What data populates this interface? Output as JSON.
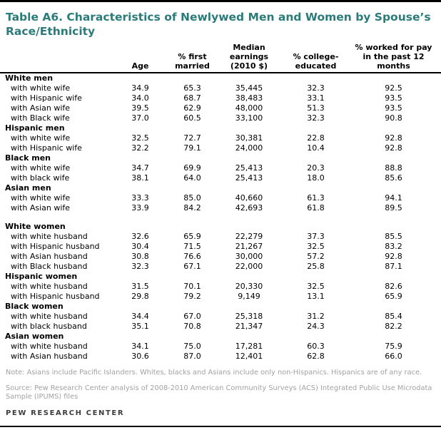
{
  "title": "Table A6. Characteristics of Newlywed Men and Women by Spouse’s Race/Ethnicity",
  "columns": [
    "Age",
    "% first\nmarried",
    "Median\nearnings\n(2010 $)",
    "% college-\neducated",
    "% worked for pay\nin the past 12\nmonths"
  ],
  "sections": [
    {
      "label": "White men",
      "gap_after": false,
      "rows": [
        {
          "label": "with white wife",
          "values": [
            "34.9",
            "65.3",
            "35,445",
            "32.3",
            "92.5"
          ]
        },
        {
          "label": "with Hispanic wife",
          "values": [
            "34.0",
            "68.7",
            "38,483",
            "33.1",
            "93.5"
          ]
        },
        {
          "label": "with Asian wife",
          "values": [
            "39.5",
            "62.9",
            "48,000",
            "51.3",
            "93.5"
          ]
        },
        {
          "label": "with Black wife",
          "values": [
            "37.0",
            "60.5",
            "33,100",
            "32.3",
            "90.8"
          ]
        }
      ]
    },
    {
      "label": "Hispanic men",
      "gap_after": false,
      "rows": [
        {
          "label": "with white wife",
          "values": [
            "32.5",
            "72.7",
            "30,381",
            "22.8",
            "92.8"
          ]
        },
        {
          "label": "with Hispanic wife",
          "values": [
            "32.2",
            "79.1",
            "24,000",
            "10.4",
            "92.8"
          ]
        }
      ]
    },
    {
      "label": "Black men",
      "gap_after": false,
      "rows": [
        {
          "label": "with white wife",
          "values": [
            "34.7",
            "69.9",
            "25,413",
            "20.3",
            "88.8"
          ]
        },
        {
          "label": "with black wife",
          "values": [
            "38.1",
            "64.0",
            "25,413",
            "18.0",
            "85.6"
          ]
        }
      ]
    },
    {
      "label": "Asian men",
      "gap_after": true,
      "rows": [
        {
          "label": "with white wife",
          "values": [
            "33.3",
            "85.0",
            "40,660",
            "61.3",
            "94.1"
          ]
        },
        {
          "label": "with Asian wife",
          "values": [
            "33.9",
            "84.2",
            "42,693",
            "61.8",
            "89.5"
          ]
        }
      ]
    },
    {
      "label": "White women",
      "gap_after": false,
      "rows": [
        {
          "label": "with white husband",
          "values": [
            "32.6",
            "65.9",
            "22,279",
            "37.3",
            "85.5"
          ]
        },
        {
          "label": "with Hispanic husband",
          "values": [
            "30.4",
            "71.5",
            "21,267",
            "32.5",
            "83.2"
          ]
        },
        {
          "label": "with Asian husband",
          "values": [
            "30.8",
            "76.6",
            "30,000",
            "57.2",
            "92.8"
          ]
        },
        {
          "label": "with Black husband",
          "values": [
            "32.3",
            "67.1",
            "22,000",
            "25.8",
            "87.1"
          ]
        }
      ]
    },
    {
      "label": "Hispanic women",
      "gap_after": false,
      "rows": [
        {
          "label": "with white husband",
          "values": [
            "31.5",
            "70.1",
            "20,330",
            "32.5",
            "82.6"
          ]
        },
        {
          "label": "with Hispanic husband",
          "values": [
            "29.8",
            "79.2",
            "9,149",
            "13.1",
            "65.9"
          ]
        }
      ]
    },
    {
      "label": "Black women",
      "gap_after": false,
      "rows": [
        {
          "label": "with white husband",
          "values": [
            "34.4",
            "67.0",
            "25,318",
            "31.2",
            "85.4"
          ]
        },
        {
          "label": "with black husband",
          "values": [
            "35.1",
            "70.8",
            "21,347",
            "24.3",
            "82.2"
          ]
        }
      ]
    },
    {
      "label": "Asian women",
      "gap_after": false,
      "rows": [
        {
          "label": "with white husband",
          "values": [
            "34.1",
            "75.0",
            "17,281",
            "60.3",
            "75.9"
          ]
        },
        {
          "label": "with Asian husband",
          "values": [
            "30.6",
            "87.0",
            "12,401",
            "62.8",
            "66.0"
          ]
        }
      ]
    }
  ],
  "note": "Note: Asians include Pacific Islanders. Whites, blacks and Asians include only non-Hispanics. Hispanics are of any race.",
  "source": "Source: Pew Research Center analysis of 2008-2010 American Community Surveys (ACS) Integrated Public Use Microdata Sample (IPUMS) files",
  "footer": "PEW RESEARCH CENTER",
  "colors": {
    "title_teal": "#2a7b79",
    "rule_black": "#000000",
    "note_gray": "#a2a2a2",
    "footer_gray": "#3d3d3d"
  }
}
